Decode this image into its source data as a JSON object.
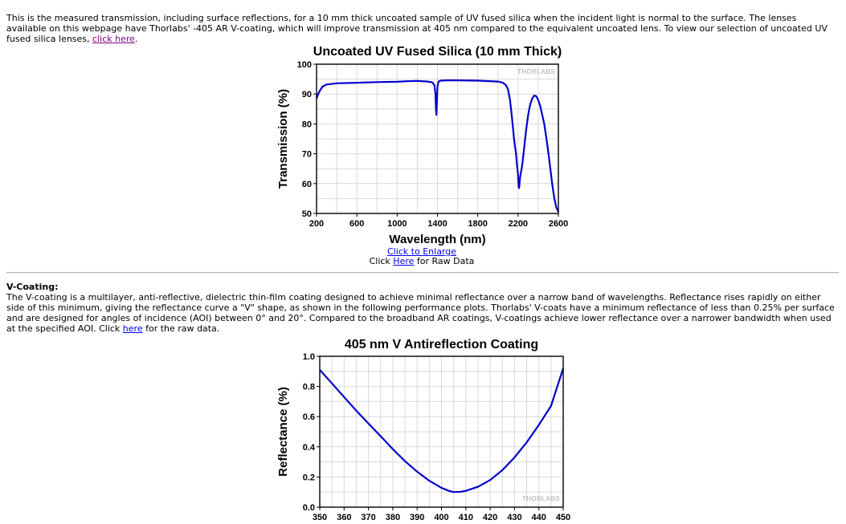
{
  "intro": {
    "text": "This is the measured transmission, including surface reflections, for a 10 mm thick uncoated sample of UV fused silica when the incident light is normal to the surface. The lenses available on this webpage have Thorlabs' -405 AR V-coating, which will improve transmission at 405 nm compared to the equivalent uncoated lens. To view our selection of uncoated UV fused silica lenses, ",
    "link_label": "click here",
    "tail": "."
  },
  "chart1_links": {
    "enlarge": "Click to Enlarge",
    "raw_prefix": "Click ",
    "raw_link": "Here",
    "raw_suffix": " for Raw Data"
  },
  "vcoating": {
    "heading": "V-Coating:",
    "text": "The V-coating is a multilayer, anti-reflective, dielectric thin-film coating designed to achieve minimal reflectance over a narrow band of wavelengths. Reflectance rises rapidly on either side of this minimum, giving the reflectance curve a \"V\" shape, as shown in the following performance plots. Thorlabs' V-coats have a minimum reflectance of less than 0.25% per surface and are designed for angles of incidence (AOI) between 0° and 20°. Compared to the broadband AR coatings, V-coatings achieve lower reflectance over a narrower bandwidth when used at the specified AOI. Click ",
    "link_label": "here",
    "tail": " for the raw data."
  },
  "watermark": "THORLABS",
  "colors": {
    "series": "#0000cc",
    "grid": "#d9d9d9",
    "link": "#0000ee",
    "visited_link": "#800080",
    "watermark": "#c0c0c0"
  },
  "chart_data": [
    {
      "type": "line",
      "title": "Uncoated UV Fused Silica (10 mm Thick)",
      "xlabel": "Wavelength (nm)",
      "ylabel": "Transmission (%)",
      "xlim": [
        200,
        2600
      ],
      "ylim": [
        50,
        100
      ],
      "xticks": [
        200,
        600,
        1000,
        1400,
        1800,
        2200,
        2600
      ],
      "yticks": [
        50,
        60,
        70,
        80,
        90,
        100
      ],
      "grid": true,
      "series": [
        {
          "x": [
            200,
            210,
            230,
            260,
            300,
            400,
            600,
            800,
            1000,
            1100,
            1200,
            1300,
            1350,
            1370,
            1380,
            1385,
            1390,
            1395,
            1400,
            1410,
            1430,
            1500,
            1600,
            1800,
            2000,
            2050,
            2080,
            2100,
            2120,
            2140,
            2160,
            2180,
            2190,
            2200,
            2205,
            2210,
            2220,
            2240,
            2260,
            2280,
            2300,
            2320,
            2340,
            2360,
            2380,
            2400,
            2420,
            2440,
            2460,
            2480,
            2500,
            2520,
            2540,
            2560,
            2580,
            2600
          ],
          "y": [
            88.5,
            89.5,
            91.0,
            92.5,
            93.2,
            93.6,
            93.8,
            94.0,
            94.1,
            94.3,
            94.4,
            94.2,
            93.9,
            93.0,
            90.0,
            85.0,
            83.0,
            87.5,
            92.5,
            94.2,
            94.5,
            94.6,
            94.6,
            94.5,
            94.2,
            93.8,
            93.0,
            91.5,
            88.0,
            82.0,
            75.0,
            70.0,
            66.0,
            63.0,
            59.0,
            58.5,
            62.0,
            66.0,
            72.0,
            78.0,
            83.0,
            86.5,
            88.5,
            89.5,
            89.3,
            88.0,
            86.0,
            83.0,
            80.0,
            75.5,
            70.5,
            65.0,
            59.5,
            55.0,
            52.0,
            50.5
          ]
        }
      ]
    },
    {
      "type": "line",
      "title": "405 nm V Antireflection Coating",
      "xlabel": "",
      "ylabel": "Reflectance (%)",
      "xlim": [
        350,
        450
      ],
      "ylim": [
        0,
        1.0
      ],
      "xticks": [
        350,
        360,
        370,
        380,
        390,
        400,
        410,
        420,
        430,
        440,
        450
      ],
      "yticks": [
        0.0,
        0.2,
        0.4,
        0.6,
        0.8,
        1.0
      ],
      "ytick_labels": [
        "0.0",
        "0.2",
        "0.4",
        "0.6",
        "0.8",
        "1.0"
      ],
      "grid": true,
      "series": [
        {
          "x": [
            350,
            355,
            360,
            365,
            370,
            375,
            380,
            385,
            390,
            395,
            400,
            403,
            405,
            408,
            410,
            415,
            420,
            425,
            430,
            435,
            440,
            445,
            450
          ],
          "y": [
            0.91,
            0.82,
            0.73,
            0.64,
            0.555,
            0.47,
            0.385,
            0.305,
            0.235,
            0.175,
            0.128,
            0.108,
            0.1,
            0.102,
            0.108,
            0.135,
            0.18,
            0.245,
            0.33,
            0.43,
            0.545,
            0.67,
            0.92
          ]
        }
      ]
    }
  ]
}
